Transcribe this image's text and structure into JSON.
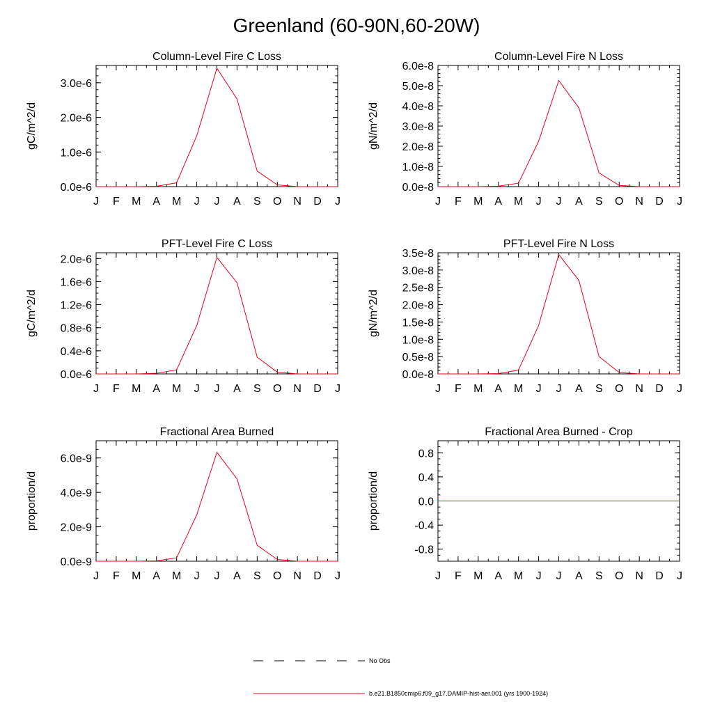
{
  "figure": {
    "title": "Greenland (60-90N,60-20W)",
    "months": [
      "J",
      "F",
      "M",
      "A",
      "M",
      "J",
      "J",
      "A",
      "S",
      "O",
      "N",
      "D",
      "J"
    ],
    "line_color": "#e8001c",
    "legend": [
      {
        "label": "No Obs",
        "style": "dashed",
        "color": "#000000"
      },
      {
        "label": "b.e21.B1850cmip6.f09_g17.DAMIP-hist-aer.001 (yrs 1900-1924)",
        "style": "solid",
        "color": "#e8001c"
      }
    ]
  },
  "chart_data": [
    {
      "type": "line",
      "title": "Column-Level Fire C Loss",
      "ylabel": "gC/m^2/d",
      "ylim": [
        0,
        3.5e-06
      ],
      "yticks": [
        0,
        1e-06,
        2e-06,
        3e-06
      ],
      "ytick_labels": [
        "0.0e-6",
        "1.0e-6",
        "2.0e-6",
        "3.0e-6"
      ],
      "ymin_step": 2e-07,
      "x": [
        1,
        2,
        3,
        4,
        5,
        6,
        7,
        8,
        9,
        10,
        11,
        12,
        13
      ],
      "series": [
        {
          "values": [
            0,
            0,
            0,
            1e-08,
            1.1e-07,
            1.47e-06,
            3.42e-06,
            2.53e-06,
            4.5e-07,
            5e-08,
            0,
            0,
            0
          ]
        }
      ]
    },
    {
      "type": "line",
      "title": "Column-Level Fire N Loss",
      "ylabel": "gN/m^2/d",
      "ylim": [
        0,
        6e-08
      ],
      "yticks": [
        0,
        1e-08,
        2e-08,
        3e-08,
        4e-08,
        5e-08,
        6e-08
      ],
      "ytick_labels": [
        "0.0e-8",
        "1.0e-8",
        "2.0e-8",
        "3.0e-8",
        "4.0e-8",
        "5.0e-8",
        "6.0e-8"
      ],
      "ymin_step": 2e-09,
      "x": [
        1,
        2,
        3,
        4,
        5,
        6,
        7,
        8,
        9,
        10,
        11,
        12,
        13
      ],
      "series": [
        {
          "values": [
            0,
            0,
            0,
            2e-10,
            1.7e-09,
            2.25e-08,
            5.25e-08,
            3.9e-08,
            6.8e-09,
            6e-10,
            0,
            0,
            0
          ]
        }
      ]
    },
    {
      "type": "line",
      "title": "PFT-Level Fire C Loss",
      "ylabel": "gC/m^2/d",
      "ylim": [
        0,
        2.1e-06
      ],
      "yticks": [
        0,
        4e-07,
        8e-07,
        1.2e-06,
        1.6e-06,
        2e-06
      ],
      "ytick_labels": [
        "0.0e-6",
        "0.4e-6",
        "0.8e-6",
        "1.2e-6",
        "1.6e-6",
        "2.0e-6"
      ],
      "ymin_step": 1e-07,
      "x": [
        1,
        2,
        3,
        4,
        5,
        6,
        7,
        8,
        9,
        10,
        11,
        12,
        13
      ],
      "series": [
        {
          "values": [
            0,
            0,
            0,
            1e-08,
            7e-08,
            8.4e-07,
            2.02e-06,
            1.58e-06,
            2.9e-07,
            3e-08,
            0,
            0,
            0
          ]
        }
      ]
    },
    {
      "type": "line",
      "title": "PFT-Level Fire N Loss",
      "ylabel": "gN/m^2/d",
      "ylim": [
        0,
        3.5e-08
      ],
      "yticks": [
        0,
        5e-09,
        1e-08,
        1.5e-08,
        2e-08,
        2.5e-08,
        3e-08,
        3.5e-08
      ],
      "ytick_labels": [
        "0.0e-8",
        "0.5e-8",
        "1.0e-8",
        "1.5e-8",
        "2.0e-8",
        "2.5e-8",
        "3.0e-8",
        "3.5e-8"
      ],
      "ymin_step": 1e-09,
      "x": [
        1,
        2,
        3,
        4,
        5,
        6,
        7,
        8,
        9,
        10,
        11,
        12,
        13
      ],
      "series": [
        {
          "values": [
            0,
            0,
            0,
            1e-10,
            1.1e-09,
            1.4e-08,
            3.45e-08,
            2.7e-08,
            5e-09,
            4e-10,
            0,
            0,
            0
          ]
        }
      ]
    },
    {
      "type": "line",
      "title": "Fractional Area Burned",
      "ylabel": "proportion/d",
      "ylim": [
        0,
        7e-09
      ],
      "yticks": [
        0,
        2e-09,
        4e-09,
        6e-09
      ],
      "ytick_labels": [
        "0.0e-9",
        "2.0e-9",
        "4.0e-9",
        "6.0e-9"
      ],
      "ymin_step": 5e-10,
      "x": [
        1,
        2,
        3,
        4,
        5,
        6,
        7,
        8,
        9,
        10,
        11,
        12,
        13
      ],
      "series": [
        {
          "values": [
            0,
            0,
            0,
            2e-11,
            2e-10,
            2.7e-09,
            6.33e-09,
            4.78e-09,
            9.3e-10,
            1e-10,
            0,
            0,
            0
          ]
        }
      ]
    },
    {
      "type": "line",
      "title": "Fractional Area Burned - Crop",
      "ylabel": "proportion/d",
      "ylim": [
        -1.0,
        1.0
      ],
      "yticks": [
        -0.8,
        -0.4,
        0.0,
        0.4,
        0.8
      ],
      "ytick_labels": [
        "-0.8",
        "-0.4",
        "0.0",
        "0.4",
        "0.8"
      ],
      "ymin_step": 0.1,
      "x": [
        1,
        2,
        3,
        4,
        5,
        6,
        7,
        8,
        9,
        10,
        11,
        12,
        13
      ],
      "series": [
        {
          "values": [
            0,
            0,
            0,
            0,
            0,
            0,
            0,
            0,
            0,
            0,
            0,
            0,
            0
          ]
        }
      ]
    }
  ]
}
